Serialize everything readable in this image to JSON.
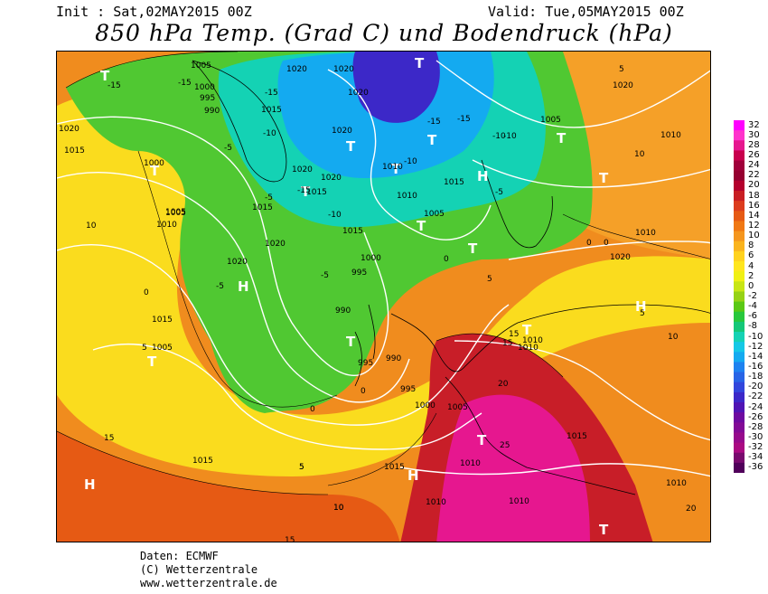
{
  "header": {
    "init": "Init : Sat,02MAY2015 00Z",
    "valid": "Valid: Tue,05MAY2015 00Z",
    "title": "850 hPa Temp. (Grad C) und Bodendruck (hPa)"
  },
  "footer": {
    "source": "Daten: ECMWF",
    "copyright": "(C) Wetterzentrale",
    "url": "www.wetterzentrale.de"
  },
  "legend": {
    "levels": [
      "32",
      "30",
      "28",
      "26",
      "24",
      "22",
      "20",
      "18",
      "16",
      "14",
      "12",
      "10",
      "8",
      "6",
      "4",
      "2",
      "0",
      "-2",
      "-4",
      "-6",
      "-8",
      "-10",
      "-12",
      "-14",
      "-16",
      "-18",
      "-20",
      "-22",
      "-24",
      "-26",
      "-28",
      "-30",
      "-32",
      "-34",
      "-36"
    ],
    "colors": [
      "#ff00ff",
      "#ff33cc",
      "#e6178f",
      "#c8004d",
      "#a0003a",
      "#960030",
      "#b4002d",
      "#c81e23",
      "#dc3c1e",
      "#e65a14",
      "#f07814",
      "#f5961e",
      "#fab41e",
      "#ffd21e",
      "#ffe61e",
      "#f0f014",
      "#c8e614",
      "#96d214",
      "#5ac814",
      "#28c83c",
      "#14c878",
      "#14d2b4",
      "#14c8e6",
      "#14aaf0",
      "#1e82f0",
      "#2864e6",
      "#3246dc",
      "#3c28c8",
      "#5014b4",
      "#6e0aa0",
      "#820a96",
      "#960a8c",
      "#aa0a82",
      "#780a6e",
      "#50005a"
    ]
  },
  "map": {
    "pressure_labels": [
      "1005",
      "1000",
      "995",
      "990",
      "1020",
      "1020",
      "1020",
      "1020",
      "1015",
      "1020",
      "1015",
      "1020",
      "1010",
      "1015",
      "1005",
      "1020",
      "1015",
      "1000",
      "1005",
      "1010",
      "1015",
      "1020",
      "1015",
      "1020",
      "1015",
      "1010",
      "1005",
      "1000",
      "995",
      "990",
      "995",
      "990",
      "995",
      "1000",
      "1005",
      "1010",
      "1015",
      "1010",
      "1015",
      "1010",
      "1010",
      "1005",
      "1015",
      "1010",
      "1020",
      "1005",
      "1010",
      "1010",
      "1010",
      "1020"
    ],
    "temp_labels": [
      "-15",
      "-15",
      "-10",
      "-5",
      "-15",
      "-15",
      "-5",
      "-10",
      "-15",
      "-10",
      "-5",
      "-10",
      "-5",
      "-5",
      "0",
      "0",
      "5",
      "0",
      "10",
      "5",
      "0",
      "5",
      "10",
      "15",
      "15",
      "20",
      "25",
      "10",
      "5",
      "10",
      "5",
      "15",
      "0",
      "-15",
      "-10",
      "20",
      "15",
      "10",
      "5",
      "0"
    ],
    "highs": [
      "H",
      "H",
      "H",
      "H",
      "H"
    ],
    "lows": [
      "T",
      "T",
      "T",
      "T",
      "T",
      "T",
      "T",
      "T",
      "T",
      "T",
      "T",
      "T",
      "T",
      "T",
      "T",
      "T"
    ]
  }
}
